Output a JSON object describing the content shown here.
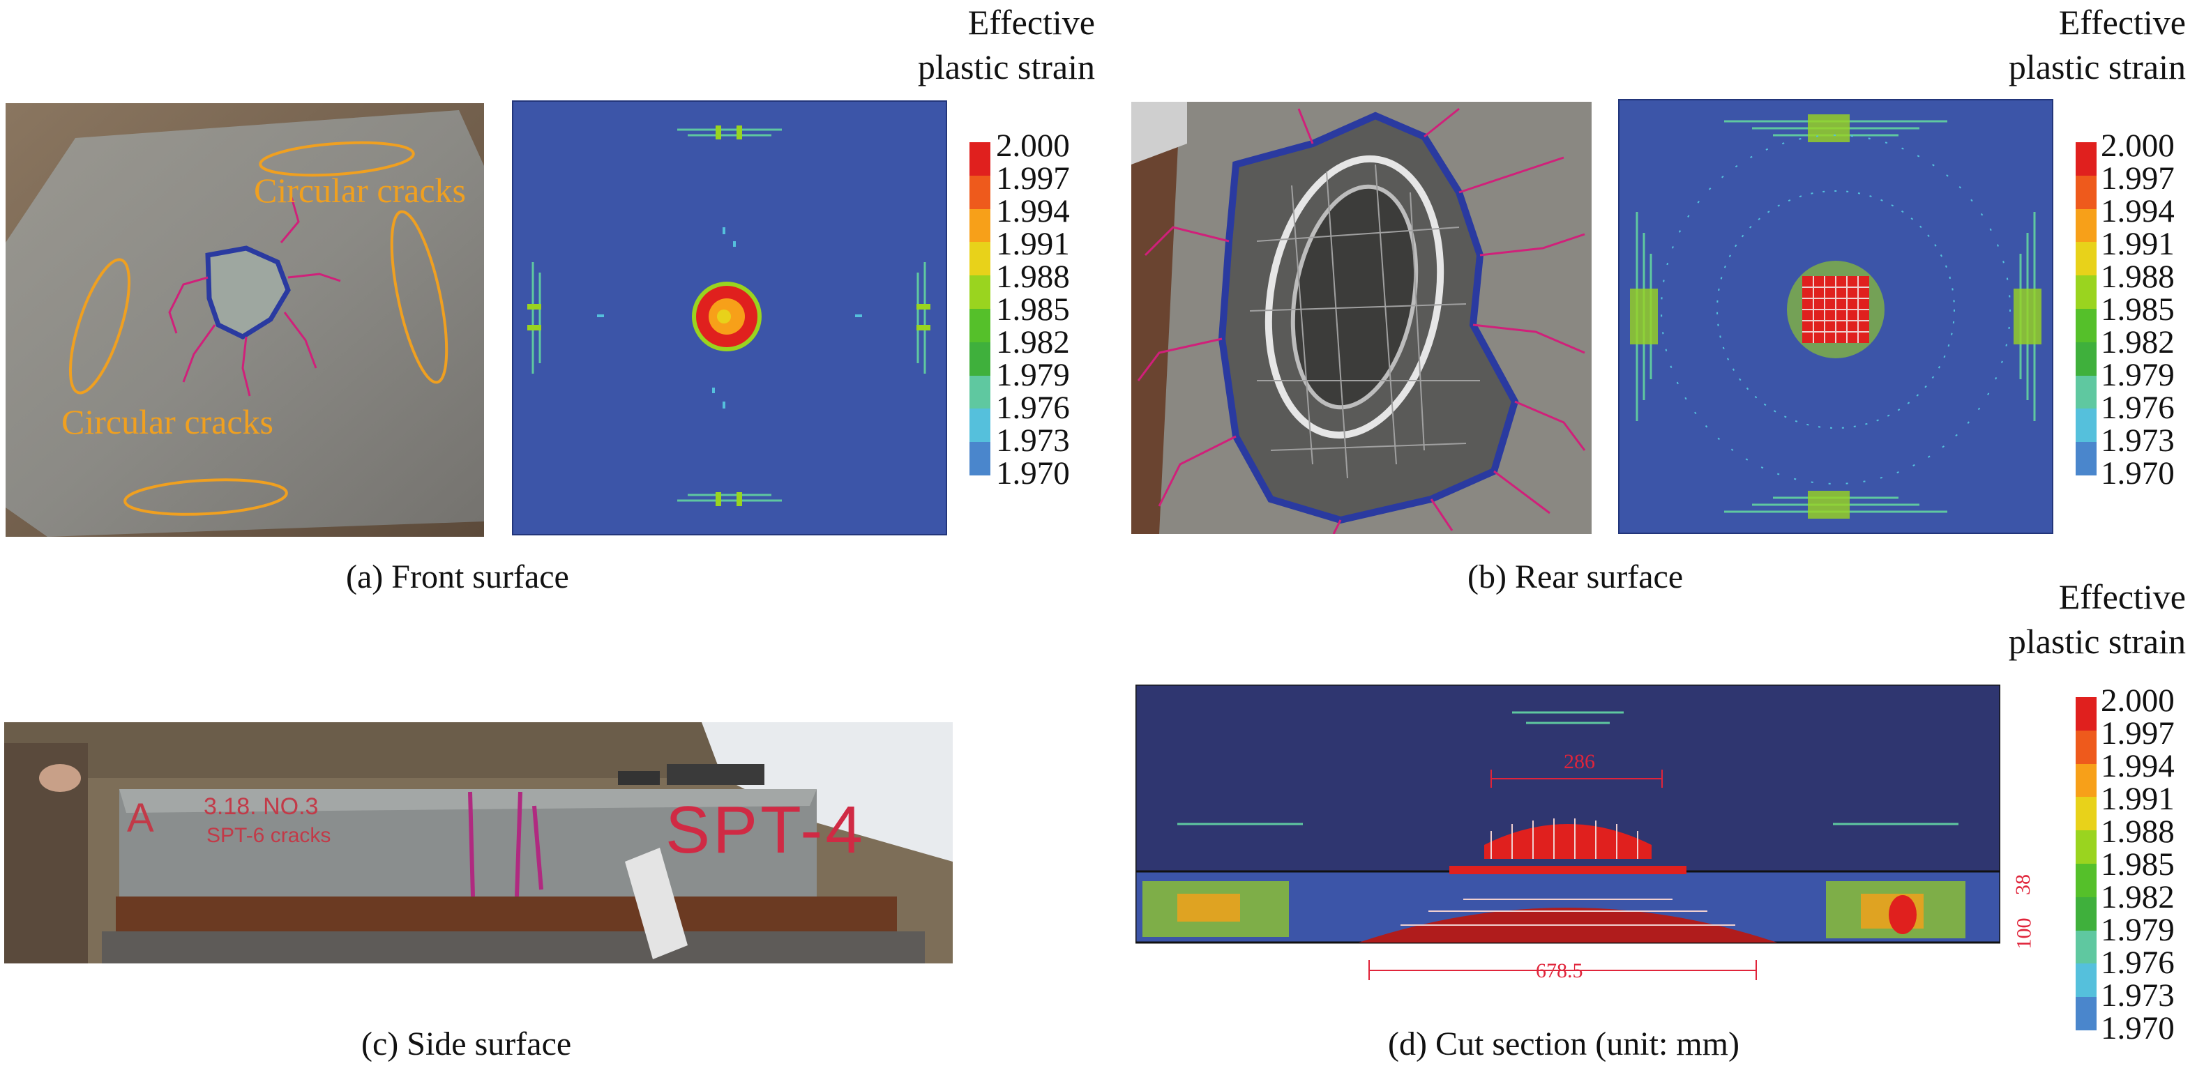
{
  "legend": {
    "title_line1": "Effective",
    "title_line2": "plastic strain",
    "ticks": [
      "2.000",
      "1.997",
      "1.994",
      "1.991",
      "1.988",
      "1.985",
      "1.982",
      "1.979",
      "1.976",
      "1.973",
      "1.970"
    ],
    "colors": [
      "#e0201e",
      "#ee5a1c",
      "#f7a019",
      "#e8d21a",
      "#9ad41f",
      "#55c02a",
      "#3fb03c",
      "#5fc8a0",
      "#55c0dc",
      "#4a86cc",
      "#3c55a8"
    ]
  },
  "panels": {
    "a": {
      "caption": "(a) Front surface",
      "annotation_top": "Circular cracks",
      "annotation_bottom": "Circular cracks"
    },
    "b": {
      "caption": "(b) Rear surface"
    },
    "c": {
      "caption": "(c) Side surface",
      "scrawl_1": "A",
      "scrawl_2": "3.18. NO.3",
      "scrawl_3": "SPT-6 cracks",
      "scrawl_4": "SPT-4"
    },
    "d": {
      "caption": "(d) Cut section (unit: mm)",
      "dim_286": "286",
      "dim_38": "38",
      "dim_100": "100",
      "dim_678": "678.5"
    }
  }
}
